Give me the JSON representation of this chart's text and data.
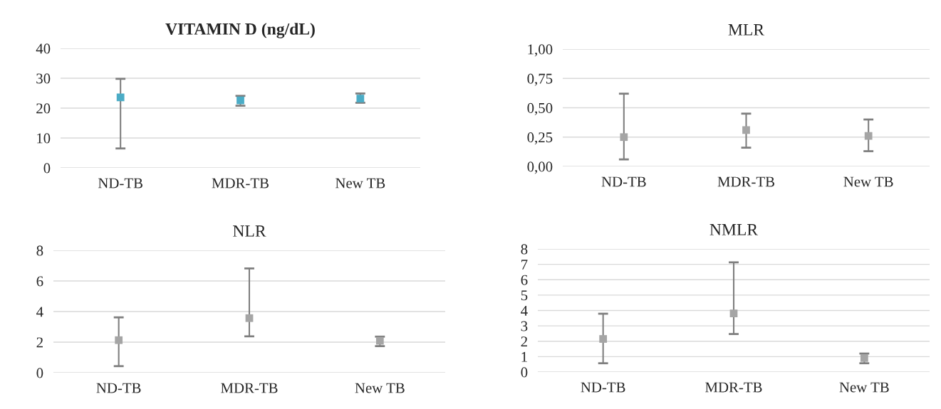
{
  "chart_data": [
    {
      "type": "scatter",
      "title": "VITAMIN D (ng/dL)",
      "categories": [
        "ND-TB",
        "MDR-TB",
        "New TB"
      ],
      "series": [
        {
          "color": "#4bacc6",
          "values": [
            23.6,
            22.6,
            23.2
          ],
          "errors": [
            [
              6.5,
              29.8
            ],
            [
              20.8,
              24.1
            ],
            [
              21.8,
              24.9
            ]
          ]
        }
      ],
      "ylim": [
        0,
        40
      ],
      "yticks": [
        0,
        10,
        20,
        30,
        40
      ],
      "grid": "y",
      "marker": "square"
    },
    {
      "type": "scatter",
      "title": "MLR",
      "categories": [
        "ND-TB",
        "MDR-TB",
        "New TB"
      ],
      "series": [
        {
          "color": "#a5a5a5",
          "values": [
            0.25,
            0.31,
            0.26
          ],
          "errors": [
            [
              0.06,
              0.62
            ],
            [
              0.16,
              0.45
            ],
            [
              0.13,
              0.4
            ]
          ]
        }
      ],
      "ylim": [
        0,
        1
      ],
      "yticks": [
        {
          "value": 0,
          "label": "0,00"
        },
        {
          "value": 0.25,
          "label": "0,25"
        },
        {
          "value": 0.5,
          "label": "0,50"
        },
        {
          "value": 0.75,
          "label": "0,75"
        },
        {
          "value": 1,
          "label": "1,00"
        }
      ],
      "grid": "y",
      "marker": "square"
    },
    {
      "type": "scatter",
      "title": "NLR",
      "categories": [
        "ND-TB",
        "MDR-TB",
        "New TB"
      ],
      "series": [
        {
          "color": "#a5a5a5",
          "values": [
            2.13,
            3.57,
            2.09
          ],
          "errors": [
            [
              0.43,
              3.62
            ],
            [
              2.38,
              6.82
            ],
            [
              1.74,
              2.36
            ]
          ]
        }
      ],
      "ylim": [
        0,
        8
      ],
      "yticks": [
        0,
        2,
        4,
        6,
        8
      ],
      "grid": "y",
      "marker": "square"
    },
    {
      "type": "scatter",
      "title": "NMLR",
      "categories": [
        "ND-TB",
        "MDR-TB",
        "New TB"
      ],
      "series": [
        {
          "color": "#a5a5a5",
          "values": [
            2.15,
            3.81,
            0.91
          ],
          "errors": [
            [
              0.57,
              3.79
            ],
            [
              2.47,
              7.13
            ],
            [
              0.57,
              1.2
            ]
          ]
        }
      ],
      "ylim": [
        0,
        8
      ],
      "yticks": [
        0,
        1,
        2,
        3,
        4,
        5,
        6,
        7,
        8
      ],
      "grid": "y",
      "marker": "square"
    }
  ]
}
